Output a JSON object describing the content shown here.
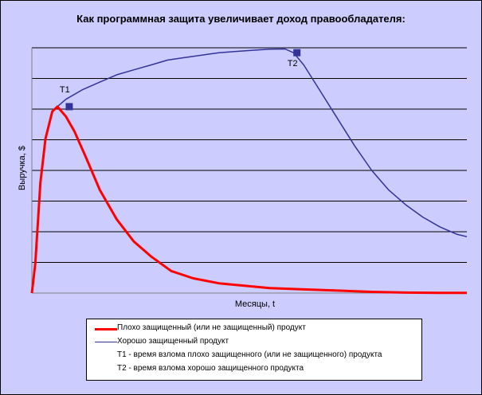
{
  "chart_data": {
    "type": "line",
    "title": "Как программная защита увеличивает доход правообладателя:",
    "xlabel": "Месяцы, t",
    "ylabel": "Выручка, $",
    "grid": true,
    "legend_position": "bottom",
    "series": [
      {
        "name": "Плохо защищенный (или не защищенный) продукт",
        "color": "#ff0000",
        "points": [
          [
            0,
            0
          ],
          [
            2,
            0.12
          ],
          [
            5,
            0.45
          ],
          [
            8,
            0.63
          ],
          [
            12,
            0.74
          ],
          [
            15,
            0.76
          ],
          [
            20,
            0.72
          ],
          [
            25,
            0.66
          ],
          [
            32,
            0.55
          ],
          [
            40,
            0.42
          ],
          [
            50,
            0.3
          ],
          [
            60,
            0.21
          ],
          [
            70,
            0.15
          ],
          [
            82,
            0.09
          ],
          [
            95,
            0.06
          ],
          [
            110,
            0.04
          ],
          [
            125,
            0.03
          ],
          [
            140,
            0.02
          ],
          [
            160,
            0.015
          ],
          [
            180,
            0.01
          ],
          [
            200,
            0.005
          ],
          [
            220,
            0.002
          ],
          [
            240,
            0.001
          ],
          [
            256,
            0.001
          ]
        ]
      },
      {
        "name": "Хорошо защищенный продукт",
        "color": "#333399",
        "points": [
          [
            0,
            0
          ],
          [
            2,
            0.12
          ],
          [
            5,
            0.45
          ],
          [
            8,
            0.63
          ],
          [
            12,
            0.74
          ],
          [
            15,
            0.76
          ],
          [
            20,
            0.79
          ],
          [
            30,
            0.83
          ],
          [
            40,
            0.86
          ],
          [
            50,
            0.89
          ],
          [
            60,
            0.91
          ],
          [
            70,
            0.93
          ],
          [
            80,
            0.95
          ],
          [
            90,
            0.96
          ],
          [
            100,
            0.97
          ],
          [
            110,
            0.98
          ],
          [
            120,
            0.985
          ],
          [
            130,
            0.99
          ],
          [
            140,
            0.994
          ],
          [
            149,
            0.995
          ],
          [
            154,
            0.98
          ],
          [
            160,
            0.93
          ],
          [
            170,
            0.82
          ],
          [
            180,
            0.71
          ],
          [
            190,
            0.6
          ],
          [
            200,
            0.5
          ],
          [
            210,
            0.42
          ],
          [
            220,
            0.36
          ],
          [
            230,
            0.31
          ],
          [
            240,
            0.27
          ],
          [
            250,
            0.24
          ],
          [
            256,
            0.23
          ]
        ]
      }
    ],
    "markers": [
      {
        "label": "T1",
        "x": 22,
        "y": 0.76
      },
      {
        "label": "T2",
        "x": 156,
        "y": 0.98
      }
    ]
  },
  "legend": {
    "items": [
      {
        "text": "Плохо защищенный (или не защищенный) продукт",
        "color": "#ff0000",
        "line": "thick"
      },
      {
        "text": "Хорошо защищенный продукт",
        "color": "#333399",
        "line": "thin"
      },
      {
        "text": "T1 - время взлома плохо защищенного (или не защищенного) продукта",
        "color": "",
        "line": "none"
      },
      {
        "text": "T2 - время взлома хорошо защищенного продукта",
        "color": "",
        "line": "none"
      }
    ]
  },
  "colors": {
    "chart_background": "#ccccff",
    "plot_background": "#ccccff",
    "gridline": "#000000",
    "marker": "#333399"
  }
}
